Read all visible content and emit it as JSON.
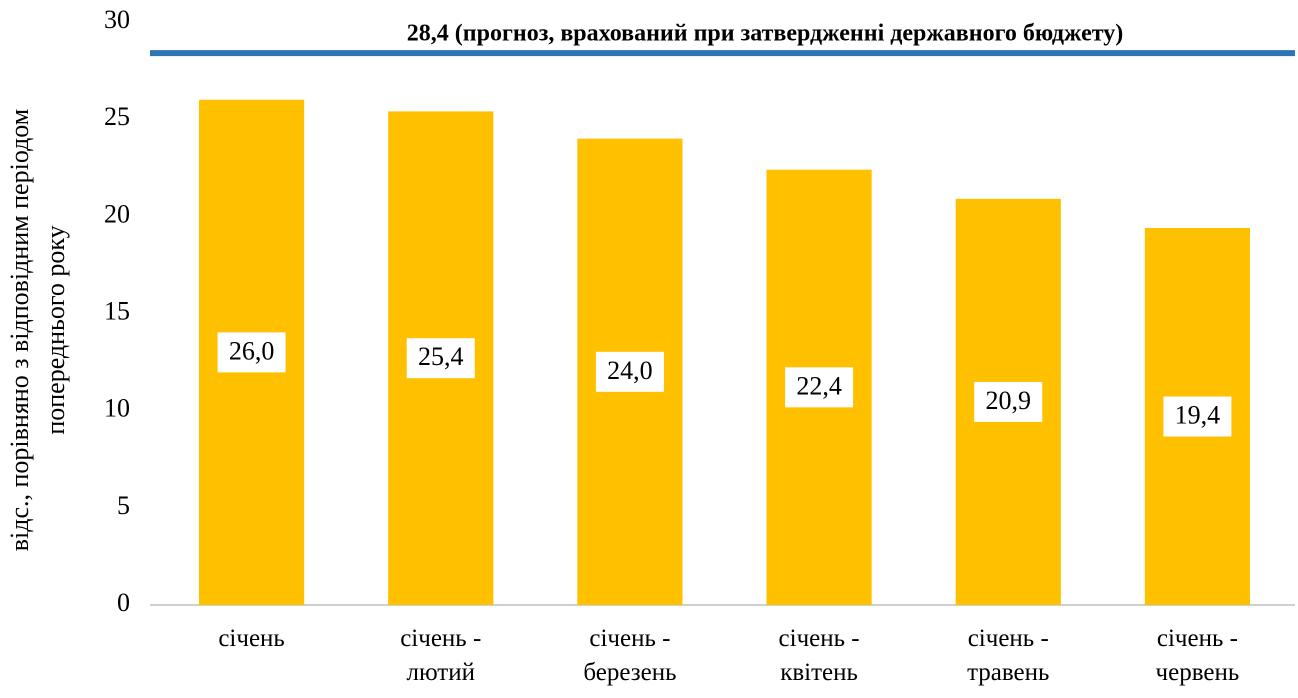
{
  "chart_data": {
    "type": "bar",
    "ylabel": [
      "відс., порівняно з відповідним періодом",
      "попереднього року"
    ],
    "categories": [
      "січень",
      "січень - лютий",
      "січень - березень",
      "січень - квітень",
      "січень - травень",
      "січень - червень"
    ],
    "values": [
      26.0,
      25.4,
      24.0,
      22.4,
      20.9,
      19.4
    ],
    "value_labels": [
      "26,0",
      "25,4",
      "24,0",
      "22,4",
      "20,9",
      "19,4"
    ],
    "color": "#ffc000",
    "reference_line": {
      "value": 28.4,
      "label": "28,4 (прогноз, врахований при затвердженні державного бюджету)",
      "color": "#2e75b6"
    },
    "ylim": [
      0,
      30
    ],
    "yticks": [
      0,
      5,
      10,
      15,
      20,
      25,
      30
    ],
    "grid": false
  }
}
